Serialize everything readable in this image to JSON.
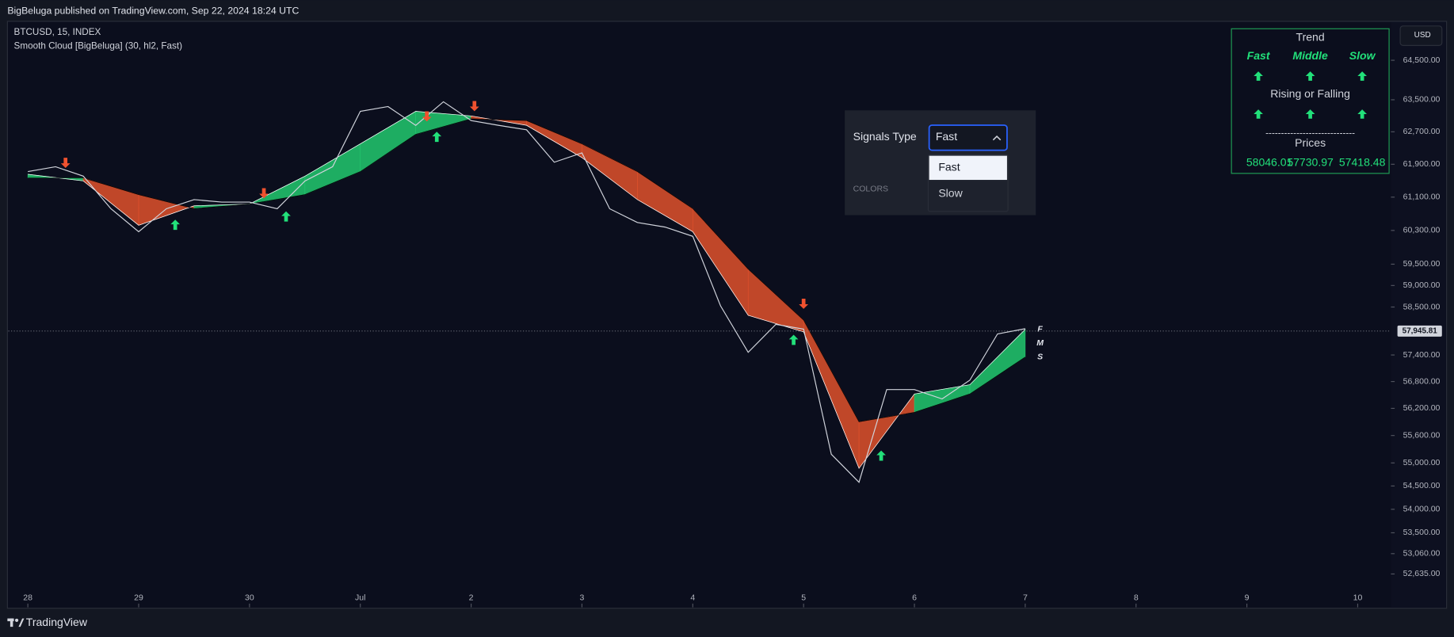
{
  "header": "BigBeluga published on TradingView.com, Sep 22, 2024 18:24 UTC",
  "legend": {
    "symbol": "BTCUSD, 15, INDEX",
    "indicator": "Smooth Cloud [BigBeluga] (30, hl2, Fast)"
  },
  "currency_button": "USD",
  "footer": "TradingView",
  "chart_data": {
    "type": "line",
    "log_scale": true,
    "grid": false,
    "xlim": [
      -0.176,
      12.3
    ],
    "xticks": [
      {
        "value": 0,
        "label": "28"
      },
      {
        "value": 1,
        "label": "29"
      },
      {
        "value": 2,
        "label": "30"
      },
      {
        "value": 3,
        "label": "Jul"
      },
      {
        "value": 4,
        "label": "2"
      },
      {
        "value": 5,
        "label": "3"
      },
      {
        "value": 6,
        "label": "4"
      },
      {
        "value": 7,
        "label": "5"
      },
      {
        "value": 8,
        "label": "6"
      },
      {
        "value": 9,
        "label": "7"
      },
      {
        "value": 10,
        "label": "8"
      },
      {
        "value": 11,
        "label": "9"
      },
      {
        "value": 12,
        "label": "10"
      }
    ],
    "ylim": [
      51945,
      65478
    ],
    "yticks": [
      {
        "value": 64500,
        "label": "64,500.00"
      },
      {
        "value": 63500,
        "label": "63,500.00"
      },
      {
        "value": 62700,
        "label": "62,700.00"
      },
      {
        "value": 61900,
        "label": "61,900.00"
      },
      {
        "value": 61100,
        "label": "61,100.00"
      },
      {
        "value": 60300,
        "label": "60,300.00"
      },
      {
        "value": 59500,
        "label": "59,500.00"
      },
      {
        "value": 59000,
        "label": "59,000.00"
      },
      {
        "value": 58500,
        "label": "58,500.00"
      },
      {
        "value": 57400,
        "label": "57,400.00"
      },
      {
        "value": 56800,
        "label": "56,800.00"
      },
      {
        "value": 56200,
        "label": "56,200.00"
      },
      {
        "value": 55600,
        "label": "55,600.00"
      },
      {
        "value": 55000,
        "label": "55,000.00"
      },
      {
        "value": 54500,
        "label": "54,500.00"
      },
      {
        "value": 54000,
        "label": "54,000.00"
      },
      {
        "value": 53500,
        "label": "53,500.00"
      },
      {
        "value": 53060,
        "label": "53,060.00"
      },
      {
        "value": 52635,
        "label": "52,635.00"
      }
    ],
    "price": {
      "color": "#d1d4dc",
      "x": [
        0,
        0.25,
        0.5,
        0.75,
        1,
        1.25,
        1.5,
        1.75,
        2,
        2.25,
        2.5,
        2.75,
        3,
        3.25,
        3.5,
        3.75,
        4,
        4.25,
        4.5,
        4.75,
        5,
        5.25,
        5.5,
        5.75,
        6,
        6.25,
        6.5,
        6.75,
        7,
        7.25,
        7.5,
        7.75,
        8,
        8.25,
        8.5,
        8.75,
        9
      ],
      "values": [
        61720,
        61840,
        61610,
        60820,
        60270,
        60820,
        61040,
        60980,
        60980,
        60820,
        61490,
        61840,
        63210,
        63330,
        62860,
        63450,
        62980,
        62860,
        62750,
        61950,
        62180,
        60820,
        60490,
        60380,
        60160,
        58530,
        57460,
        58100,
        57990,
        55190,
        54580,
        56620,
        56620,
        56410,
        56830,
        57880,
        58000
      ]
    },
    "cloud": {
      "up_color": "#22c96e",
      "down_color": "#e0512c",
      "x": [
        0,
        0.5,
        1,
        1.5,
        2,
        2.5,
        3,
        3.5,
        4,
        4.5,
        5,
        5.5,
        6,
        6.5,
        7,
        7.5,
        8,
        8.5,
        9
      ],
      "fast": [
        61655,
        61494,
        60424,
        60891,
        60934,
        61608,
        62403,
        63210,
        63095,
        62862,
        62063,
        61041,
        60270,
        58308,
        57927,
        54883,
        56521,
        56728,
        57986
      ],
      "slow": [
        61566,
        61566,
        61161,
        60824,
        60934,
        61161,
        61720,
        62637,
        63022,
        62980,
        62403,
        61720,
        60824,
        59385,
        58198,
        55902,
        56111,
        56521,
        57353
      ],
      "end_labels": [
        "F",
        "M",
        "S"
      ]
    },
    "markers": [
      {
        "shape": "up",
        "color": "#22e07a",
        "x": [
          1.33,
          2.33,
          3.69,
          6.91,
          7.7
        ],
        "y": [
          60424,
          60624,
          62565,
          57734,
          55148
        ]
      },
      {
        "shape": "down",
        "color": "#f0522f",
        "x": [
          0.34,
          2.13,
          3.6,
          4.03,
          7.0
        ],
        "y": [
          61946,
          61205,
          63095,
          63352,
          58585
        ]
      }
    ],
    "last_price": {
      "value": 57945.81,
      "label": "57,945.81"
    }
  },
  "panel": {
    "title": "Trend",
    "columns": [
      "Fast",
      "Middle",
      "Slow"
    ],
    "subtitle": "Rising or Falling",
    "separator": "-----------------------------",
    "prices_title": "Prices",
    "prices": [
      "58046.01",
      "57730.97",
      "57418.48"
    ]
  },
  "dropdown": {
    "label": "Signals Type",
    "selected": "Fast",
    "options": [
      "Fast",
      "Slow"
    ],
    "section": "COLORS"
  }
}
